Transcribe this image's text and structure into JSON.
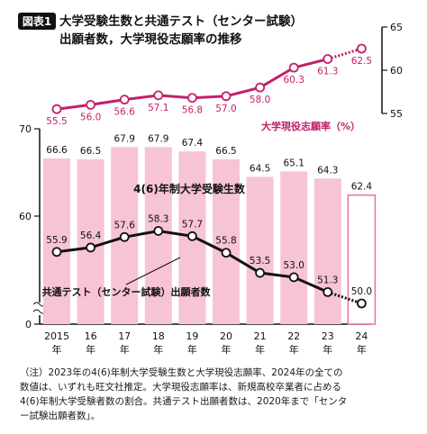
{
  "figure": {
    "badge": "図表1",
    "title_line1": "大学受験生数と共通テスト（センター試験）",
    "title_line2": "出願者数，大学現役志願率の推移"
  },
  "chart_data": {
    "type": "bar+line",
    "categories": [
      "2015",
      "16",
      "17",
      "18",
      "19",
      "20",
      "21",
      "22",
      "23",
      "24"
    ],
    "category_suffix": "年",
    "left_axis": {
      "ticks": [
        "70",
        "60",
        "0"
      ],
      "ylim": [
        45,
        70
      ],
      "break": true
    },
    "right_axis": {
      "ticks": [
        "65",
        "60",
        "55"
      ],
      "ylim": [
        55,
        65
      ]
    },
    "series": [
      {
        "name": "4(6)年制大学受験生数",
        "type": "bar",
        "axis": "left",
        "values": [
          66.6,
          66.5,
          67.9,
          67.9,
          67.4,
          66.5,
          64.5,
          65.1,
          64.3,
          62.4
        ],
        "labels": [
          "66.6",
          "66.5",
          "67.9",
          "67.9",
          "67.4",
          "66.5",
          "64.5",
          "65.1",
          "64.3",
          "62.4"
        ],
        "estimated_last": true,
        "color": "#f7c3d6",
        "outline_last": "#e8729e"
      },
      {
        "name": "共通テスト（センター試験）出願者数",
        "type": "line",
        "axis": "left",
        "values": [
          55.9,
          56.4,
          57.6,
          58.3,
          57.7,
          55.8,
          53.5,
          53.0,
          51.3,
          50.0
        ],
        "labels": [
          "55.9",
          "56.4",
          "57.6",
          "58.3",
          "57.7",
          "55.8",
          "53.5",
          "53.0",
          "51.3",
          "50.0"
        ],
        "color": "#111111"
      },
      {
        "name": "大学現役志願率（%）",
        "type": "line",
        "axis": "right",
        "values": [
          55.5,
          56.0,
          56.6,
          57.1,
          56.8,
          57.0,
          58.0,
          60.3,
          61.3,
          62.5
        ],
        "labels": [
          "55.5",
          "56.0",
          "56.6",
          "57.1",
          "56.8",
          "57.0",
          "58.0",
          "60.3",
          "61.3",
          "62.5"
        ],
        "color": "#c3206a"
      }
    ]
  },
  "note": {
    "lines": [
      "（注）2023年の4(6)年制大学受験生数と大学現役志願率、2024年の全ての",
      "数値は、いずれも旺文社推定。大学現役志願率は、新規高校卒業者に占める",
      "4(6)年制大学受験者数の割合。共通テスト出願者数は、2020年まで「センタ",
      "ー試験出願者数」。"
    ]
  }
}
